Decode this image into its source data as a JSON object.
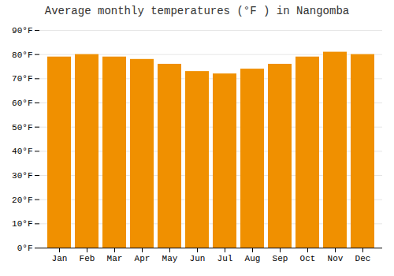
{
  "chart_data": {
    "type": "bar",
    "title": "Average monthly temperatures (°F ) in Nangomba",
    "categories": [
      "Jan",
      "Feb",
      "Mar",
      "Apr",
      "May",
      "Jun",
      "Jul",
      "Aug",
      "Sep",
      "Oct",
      "Nov",
      "Dec"
    ],
    "values": [
      79,
      80,
      79,
      78,
      76,
      73,
      72,
      74,
      76,
      79,
      81,
      80
    ],
    "color": "#F09000",
    "ylim": [
      0,
      90
    ],
    "yticks": [
      {
        "value": 0,
        "label": "0°F"
      },
      {
        "value": 10,
        "label": "10°F"
      },
      {
        "value": 20,
        "label": "20°F"
      },
      {
        "value": 30,
        "label": "30°F"
      },
      {
        "value": 40,
        "label": "40°F"
      },
      {
        "value": 50,
        "label": "50°F"
      },
      {
        "value": 60,
        "label": "60°F"
      },
      {
        "value": 70,
        "label": "70°F"
      },
      {
        "value": 80,
        "label": "80°F"
      },
      {
        "value": 90,
        "label": "90°F"
      }
    ],
    "grid": true
  }
}
